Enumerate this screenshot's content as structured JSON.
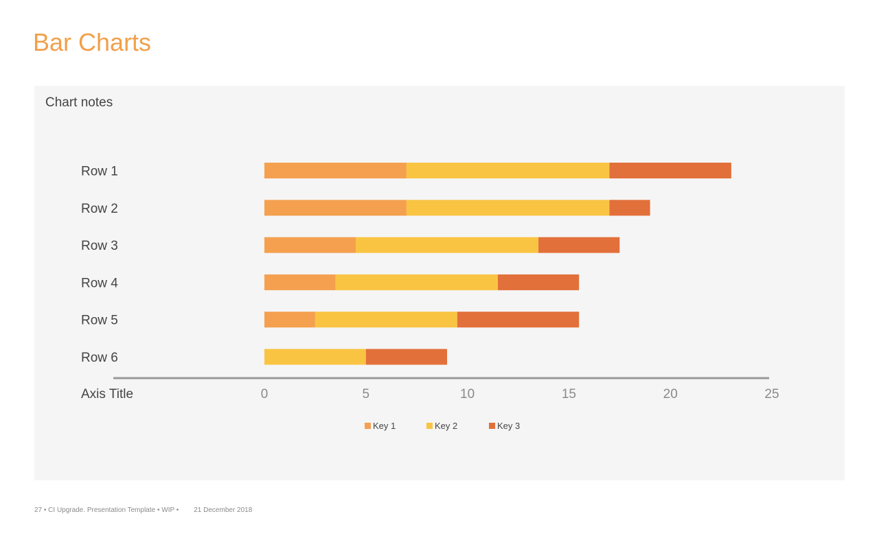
{
  "slide": {
    "title": "Bar Charts",
    "chart_notes": "Chart notes"
  },
  "footer": {
    "text": "27 • CI Upgrade. Presentation Template • WIP •",
    "date": "21 December 2018"
  },
  "colors": {
    "title": "#F0A04B",
    "key1": "#F4A04F",
    "key2": "#FAC443",
    "key3": "#E2703A",
    "axis": "#999999",
    "panel": "#F5F5F5"
  },
  "chart_data": {
    "type": "bar",
    "orientation": "horizontal",
    "stacked": true,
    "categories": [
      "Row 1",
      "Row 2",
      "Row 3",
      "Row 4",
      "Row 5",
      "Row 6"
    ],
    "series": [
      {
        "name": "Key 1",
        "values": [
          7,
          7,
          4.5,
          3.5,
          2.5,
          0
        ]
      },
      {
        "name": "Key 2",
        "values": [
          10,
          10,
          9,
          8,
          7,
          5
        ]
      },
      {
        "name": "Key 3",
        "values": [
          6,
          2,
          4,
          4,
          6,
          4
        ]
      }
    ],
    "xlabel": "Axis Title",
    "xlim": [
      0,
      25
    ],
    "xticks": [
      0,
      5,
      10,
      15,
      20,
      25
    ],
    "legend_position": "bottom",
    "grid": false
  }
}
